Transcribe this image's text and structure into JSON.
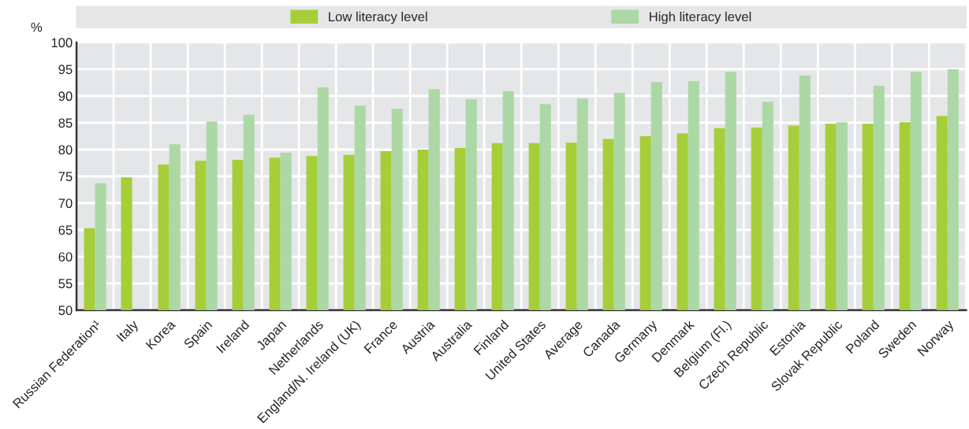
{
  "chart_data": {
    "type": "bar",
    "ylabel": "%",
    "categories": [
      "Russian Federation¹",
      "Italy",
      "Korea",
      "Spain",
      "Ireland",
      "Japan",
      "Netherlands",
      "England/N. Ireland (UK)",
      "France",
      "Austria",
      "Australia",
      "Finland",
      "United States",
      "Average",
      "Canada",
      "Germany",
      "Denmark",
      "Belgium (Fl.)",
      "Czech Republic",
      "Estonia",
      "Slovak Republic",
      "Poland",
      "Sweden",
      "Norway"
    ],
    "series": [
      {
        "name": "Low literacy level",
        "color": "#a6ce39",
        "values": [
          65.3,
          74.8,
          77.2,
          77.9,
          78.1,
          78.5,
          78.8,
          79.0,
          79.7,
          80.0,
          80.3,
          81.2,
          81.2,
          81.3,
          82.0,
          82.5,
          83.0,
          84.0,
          84.1,
          84.5,
          84.8,
          84.8,
          85.1,
          86.3
        ]
      },
      {
        "name": "High literacy level",
        "color": "#acd8a6",
        "values": [
          73.7,
          null,
          81.0,
          85.2,
          86.5,
          79.4,
          91.6,
          88.2,
          87.6,
          91.3,
          89.4,
          90.9,
          88.5,
          89.5,
          90.6,
          92.6,
          92.8,
          94.5,
          88.9,
          93.8,
          85.1,
          91.9,
          94.5,
          95.0
        ]
      }
    ],
    "ylim": [
      50,
      100
    ],
    "yticks": [
      50,
      55,
      60,
      65,
      70,
      75,
      80,
      85,
      90,
      95,
      100
    ],
    "grid": true,
    "legend": "top"
  }
}
